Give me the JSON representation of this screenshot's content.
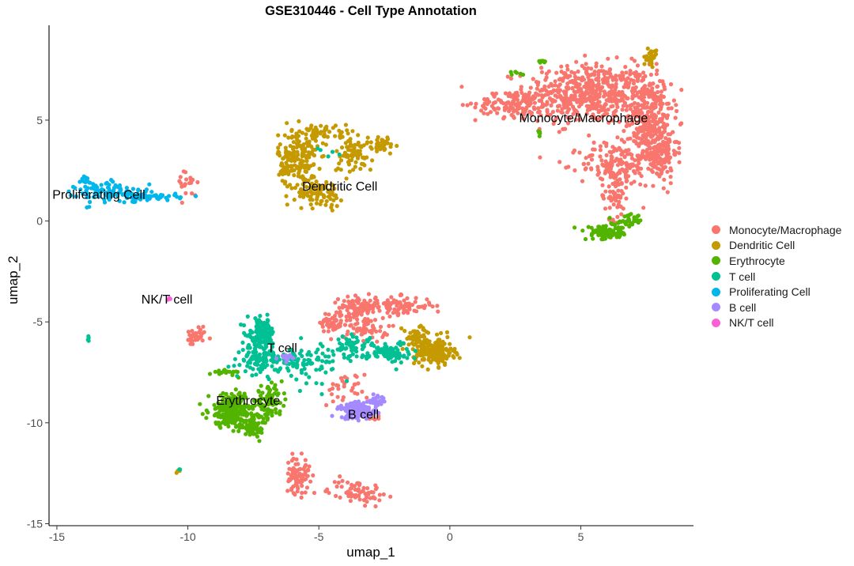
{
  "chart_data": {
    "type": "scatter",
    "title": "GSE310446 - Cell Type Annotation",
    "xlabel": "umap_1",
    "ylabel": "umap_2",
    "xlim": [
      -15.3,
      9.3
    ],
    "ylim": [
      -15.1,
      9.7
    ],
    "xticks": [
      -15,
      -10,
      -5,
      0,
      5
    ],
    "yticks": [
      -15,
      -10,
      -5,
      0,
      5
    ],
    "grid": false,
    "legend_position": "right",
    "series": [
      {
        "name": "Monocyte/Macrophage",
        "color": "#F8766D",
        "label": {
          "text": "Monocyte/Macrophage",
          "x": 5.1,
          "y": 5.1
        },
        "clusters": [
          {
            "cx": 5.3,
            "cy": 6.3,
            "sx": 1.6,
            "sy": 1.0,
            "n": 520
          },
          {
            "cx": 7.6,
            "cy": 5.0,
            "sx": 0.55,
            "sy": 1.5,
            "n": 260
          },
          {
            "cx": 8.0,
            "cy": 3.4,
            "sx": 0.45,
            "sy": 1.0,
            "n": 140
          },
          {
            "cx": 6.3,
            "cy": 2.8,
            "sx": 0.9,
            "sy": 0.7,
            "n": 140
          },
          {
            "cx": 2.5,
            "cy": 5.8,
            "sx": 1.0,
            "sy": 0.45,
            "n": 120
          },
          {
            "cx": 6.3,
            "cy": 1.3,
            "sx": 0.35,
            "sy": 0.8,
            "n": 60
          },
          {
            "cx": -3.5,
            "cy": -4.3,
            "sx": 0.5,
            "sy": 0.35,
            "n": 90
          },
          {
            "cx": -2.0,
            "cy": -4.2,
            "sx": 0.9,
            "sy": 0.3,
            "n": 90
          },
          {
            "cx": -4.5,
            "cy": -5.0,
            "sx": 0.3,
            "sy": 0.35,
            "n": 50
          },
          {
            "cx": -3.2,
            "cy": -5.3,
            "sx": 0.6,
            "sy": 0.4,
            "n": 60
          },
          {
            "cx": -9.7,
            "cy": -5.8,
            "sx": 0.25,
            "sy": 0.3,
            "n": 40
          },
          {
            "cx": -10.0,
            "cy": 1.9,
            "sx": 0.25,
            "sy": 0.5,
            "n": 22
          },
          {
            "cx": -4.0,
            "cy": -8.3,
            "sx": 0.6,
            "sy": 0.5,
            "n": 30
          },
          {
            "cx": -2.9,
            "cy": -9.7,
            "sx": 0.2,
            "sy": 0.2,
            "n": 10
          },
          {
            "cx": -5.8,
            "cy": -12.6,
            "sx": 0.3,
            "sy": 0.6,
            "n": 80
          },
          {
            "cx": -3.6,
            "cy": -13.4,
            "sx": 0.7,
            "sy": 0.4,
            "n": 70
          }
        ]
      },
      {
        "name": "Dendritic Cell",
        "color": "#C49A00",
        "label": {
          "text": "Dendritic Cell",
          "x": -4.2,
          "y": 1.7
        },
        "clusters": [
          {
            "cx": -5.8,
            "cy": 3.0,
            "sx": 0.5,
            "sy": 0.9,
            "n": 180
          },
          {
            "cx": -4.9,
            "cy": 4.4,
            "sx": 0.8,
            "sy": 0.25,
            "n": 60
          },
          {
            "cx": -3.7,
            "cy": 3.3,
            "sx": 0.5,
            "sy": 0.6,
            "n": 70
          },
          {
            "cx": -5.0,
            "cy": 1.4,
            "sx": 0.6,
            "sy": 0.45,
            "n": 80
          },
          {
            "cx": -2.6,
            "cy": 3.8,
            "sx": 0.45,
            "sy": 0.3,
            "n": 40
          },
          {
            "cx": -0.6,
            "cy": -6.5,
            "sx": 0.5,
            "sy": 0.45,
            "n": 170
          },
          {
            "cx": -1.2,
            "cy": -5.8,
            "sx": 0.4,
            "sy": 0.4,
            "n": 60
          },
          {
            "cx": 7.7,
            "cy": 8.1,
            "sx": 0.12,
            "sy": 0.25,
            "n": 30
          },
          {
            "cx": -10.4,
            "cy": -12.4,
            "sx": 0.05,
            "sy": 0.05,
            "n": 3
          }
        ]
      },
      {
        "name": "Erythrocyte",
        "color": "#53B400",
        "label": {
          "text": "Erythrocyte",
          "x": -7.7,
          "y": -8.9
        },
        "clusters": [
          {
            "cx": -8.3,
            "cy": -9.4,
            "sx": 0.6,
            "sy": 0.55,
            "n": 260
          },
          {
            "cx": -7.5,
            "cy": -10.2,
            "sx": 0.35,
            "sy": 0.3,
            "n": 60
          },
          {
            "cx": -6.9,
            "cy": -8.9,
            "sx": 0.35,
            "sy": 0.45,
            "n": 80
          },
          {
            "cx": -8.5,
            "cy": -7.5,
            "sx": 0.35,
            "sy": 0.1,
            "n": 25
          },
          {
            "cx": 6.0,
            "cy": -0.6,
            "sx": 0.55,
            "sy": 0.22,
            "n": 90
          },
          {
            "cx": 6.8,
            "cy": 0.0,
            "sx": 0.35,
            "sy": 0.22,
            "n": 40
          },
          {
            "cx": 3.5,
            "cy": 7.9,
            "sx": 0.12,
            "sy": 0.06,
            "n": 8
          },
          {
            "cx": 3.4,
            "cy": 4.4,
            "sx": 0.08,
            "sy": 0.1,
            "n": 5
          },
          {
            "cx": 2.6,
            "cy": 7.3,
            "sx": 0.2,
            "sy": 0.1,
            "n": 6
          }
        ]
      },
      {
        "name": "T cell",
        "color": "#00C094",
        "label": {
          "text": "T cell",
          "x": -6.4,
          "y": -6.3
        },
        "clusters": [
          {
            "cx": -7.2,
            "cy": -5.6,
            "sx": 0.35,
            "sy": 0.5,
            "n": 140
          },
          {
            "cx": -7.2,
            "cy": -6.9,
            "sx": 0.5,
            "sy": 0.45,
            "n": 110
          },
          {
            "cx": -5.5,
            "cy": -7.0,
            "sx": 0.8,
            "sy": 0.6,
            "n": 80
          },
          {
            "cx": -3.8,
            "cy": -6.2,
            "sx": 0.6,
            "sy": 0.4,
            "n": 60
          },
          {
            "cx": -2.3,
            "cy": -6.5,
            "sx": 0.5,
            "sy": 0.35,
            "n": 80
          },
          {
            "cx": -13.8,
            "cy": -5.8,
            "sx": 0.05,
            "sy": 0.08,
            "n": 4
          },
          {
            "cx": -4.4,
            "cy": 3.3,
            "sx": 0.4,
            "sy": 0.4,
            "n": 5
          },
          {
            "cx": -10.3,
            "cy": -12.3,
            "sx": 0.05,
            "sy": 0.05,
            "n": 3
          }
        ]
      },
      {
        "name": "Proliferating Cell",
        "color": "#00B6EB",
        "label": {
          "text": "Proliferating Cell",
          "x": -13.4,
          "y": 1.3
        },
        "clusters": [
          {
            "cx": -12.9,
            "cy": 1.4,
            "sx": 0.9,
            "sy": 0.35,
            "n": 110
          },
          {
            "cx": -11.3,
            "cy": 1.2,
            "sx": 0.7,
            "sy": 0.12,
            "n": 50
          },
          {
            "cx": -13.9,
            "cy": 2.0,
            "sx": 0.12,
            "sy": 0.15,
            "n": 15
          }
        ]
      },
      {
        "name": "B cell",
        "color": "#A58AFF",
        "label": {
          "text": "B cell",
          "x": -3.3,
          "y": -9.6
        },
        "clusters": [
          {
            "cx": -3.5,
            "cy": -9.4,
            "sx": 0.5,
            "sy": 0.28,
            "n": 140
          },
          {
            "cx": -2.8,
            "cy": -8.9,
            "sx": 0.25,
            "sy": 0.15,
            "n": 20
          },
          {
            "cx": -6.2,
            "cy": -6.8,
            "sx": 0.25,
            "sy": 0.15,
            "n": 12
          }
        ]
      },
      {
        "name": "NK/T cell",
        "color": "#FB61D7",
        "label": {
          "text": "NK/T cell",
          "x": -10.8,
          "y": -3.9
        },
        "clusters": [
          {
            "cx": -10.75,
            "cy": -3.85,
            "sx": 0.05,
            "sy": 0.05,
            "n": 4
          }
        ]
      }
    ]
  }
}
